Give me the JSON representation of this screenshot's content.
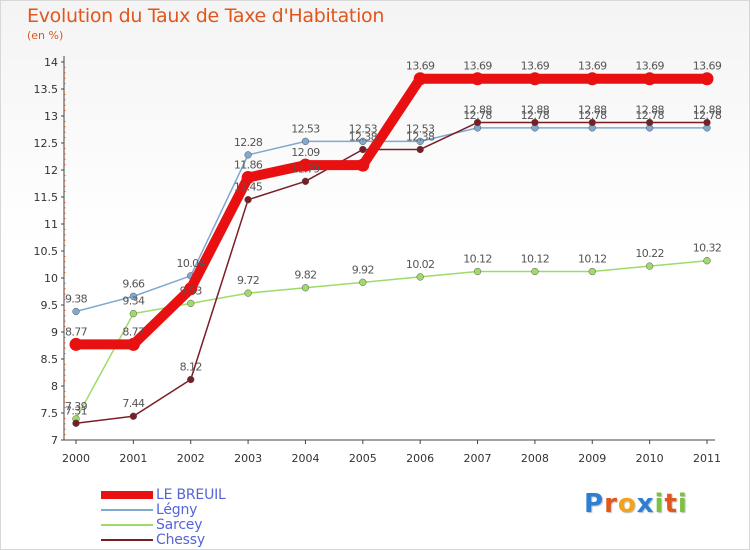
{
  "chart_data": {
    "type": "line",
    "title": "Evolution du Taux de Taxe d'Habitation",
    "subtitle": "(en %)",
    "x": [
      "2000",
      "2001",
      "2002",
      "2003",
      "2004",
      "2005",
      "2006",
      "2007",
      "2008",
      "2009",
      "2010",
      "2011"
    ],
    "ylim": [
      7,
      14
    ],
    "yticks": [
      "7",
      "7.5",
      "8",
      "8.5",
      "9",
      "9.5",
      "10",
      "10.5",
      "11",
      "11.5",
      "12",
      "12.5",
      "13",
      "13.5",
      "14"
    ],
    "grid": false,
    "legend_position": "bottom-left",
    "series": [
      {
        "name": "LE BREUIL",
        "color": "#e81010",
        "emphasis": true,
        "values": [
          8.77,
          8.77,
          9.8,
          11.86,
          12.09,
          12.09,
          13.69,
          13.69,
          13.69,
          13.69,
          13.69,
          13.69
        ],
        "labels": [
          "8.77",
          "8.77",
          "",
          "11.86",
          "12.09",
          "",
          "13.69",
          "13.69",
          "13.69",
          "13.69",
          "13.69",
          "13.69"
        ]
      },
      {
        "name": "Légny",
        "color": "#7fa9cf",
        "values": [
          9.38,
          9.66,
          10.04,
          12.28,
          12.53,
          12.53,
          12.53,
          12.78,
          12.78,
          12.78,
          12.78,
          12.78
        ],
        "labels": [
          "9.38",
          "9.66",
          "10.04",
          "12.28",
          "12.53",
          "12.53",
          "12.53",
          "12.78",
          "12.78",
          "12.78",
          "12.78",
          "12.78"
        ]
      },
      {
        "name": "Sarcey",
        "color": "#9fdb6a",
        "values": [
          7.39,
          9.34,
          9.53,
          9.72,
          9.82,
          9.92,
          10.02,
          10.12,
          10.12,
          10.12,
          10.22,
          10.32
        ],
        "labels": [
          "7.39",
          "9.34",
          "9.53",
          "9.72",
          "9.82",
          "9.92",
          "10.02",
          "10.12",
          "10.12",
          "10.12",
          "10.22",
          "10.32"
        ]
      },
      {
        "name": "Chessy",
        "color": "#7a1e26",
        "values": [
          7.31,
          7.44,
          8.12,
          11.45,
          11.79,
          12.38,
          12.38,
          12.88,
          12.88,
          12.88,
          12.88,
          12.88
        ],
        "labels": [
          "7.31",
          "7.44",
          "8.12",
          "11.45",
          "11.79",
          "12.38",
          "12.38",
          "12.88",
          "12.88",
          "12.88",
          "12.88",
          "12.88"
        ]
      }
    ]
  },
  "legend": {
    "items": [
      {
        "label": "LE BREUIL",
        "color": "#e81010"
      },
      {
        "label": "Légny",
        "color": "#7fa9cf"
      },
      {
        "label": "Sarcey",
        "color": "#9fdb6a"
      },
      {
        "label": "Chessy",
        "color": "#7a1e26"
      }
    ]
  },
  "brand": {
    "letters": [
      "P",
      "r",
      "o",
      "x",
      "i",
      "t",
      "i"
    ],
    "colors": [
      "#2e7fd3",
      "#e0561c",
      "#f2a31b",
      "#2e7fd3",
      "#7cc242",
      "#e0561c",
      "#7cc242"
    ]
  }
}
